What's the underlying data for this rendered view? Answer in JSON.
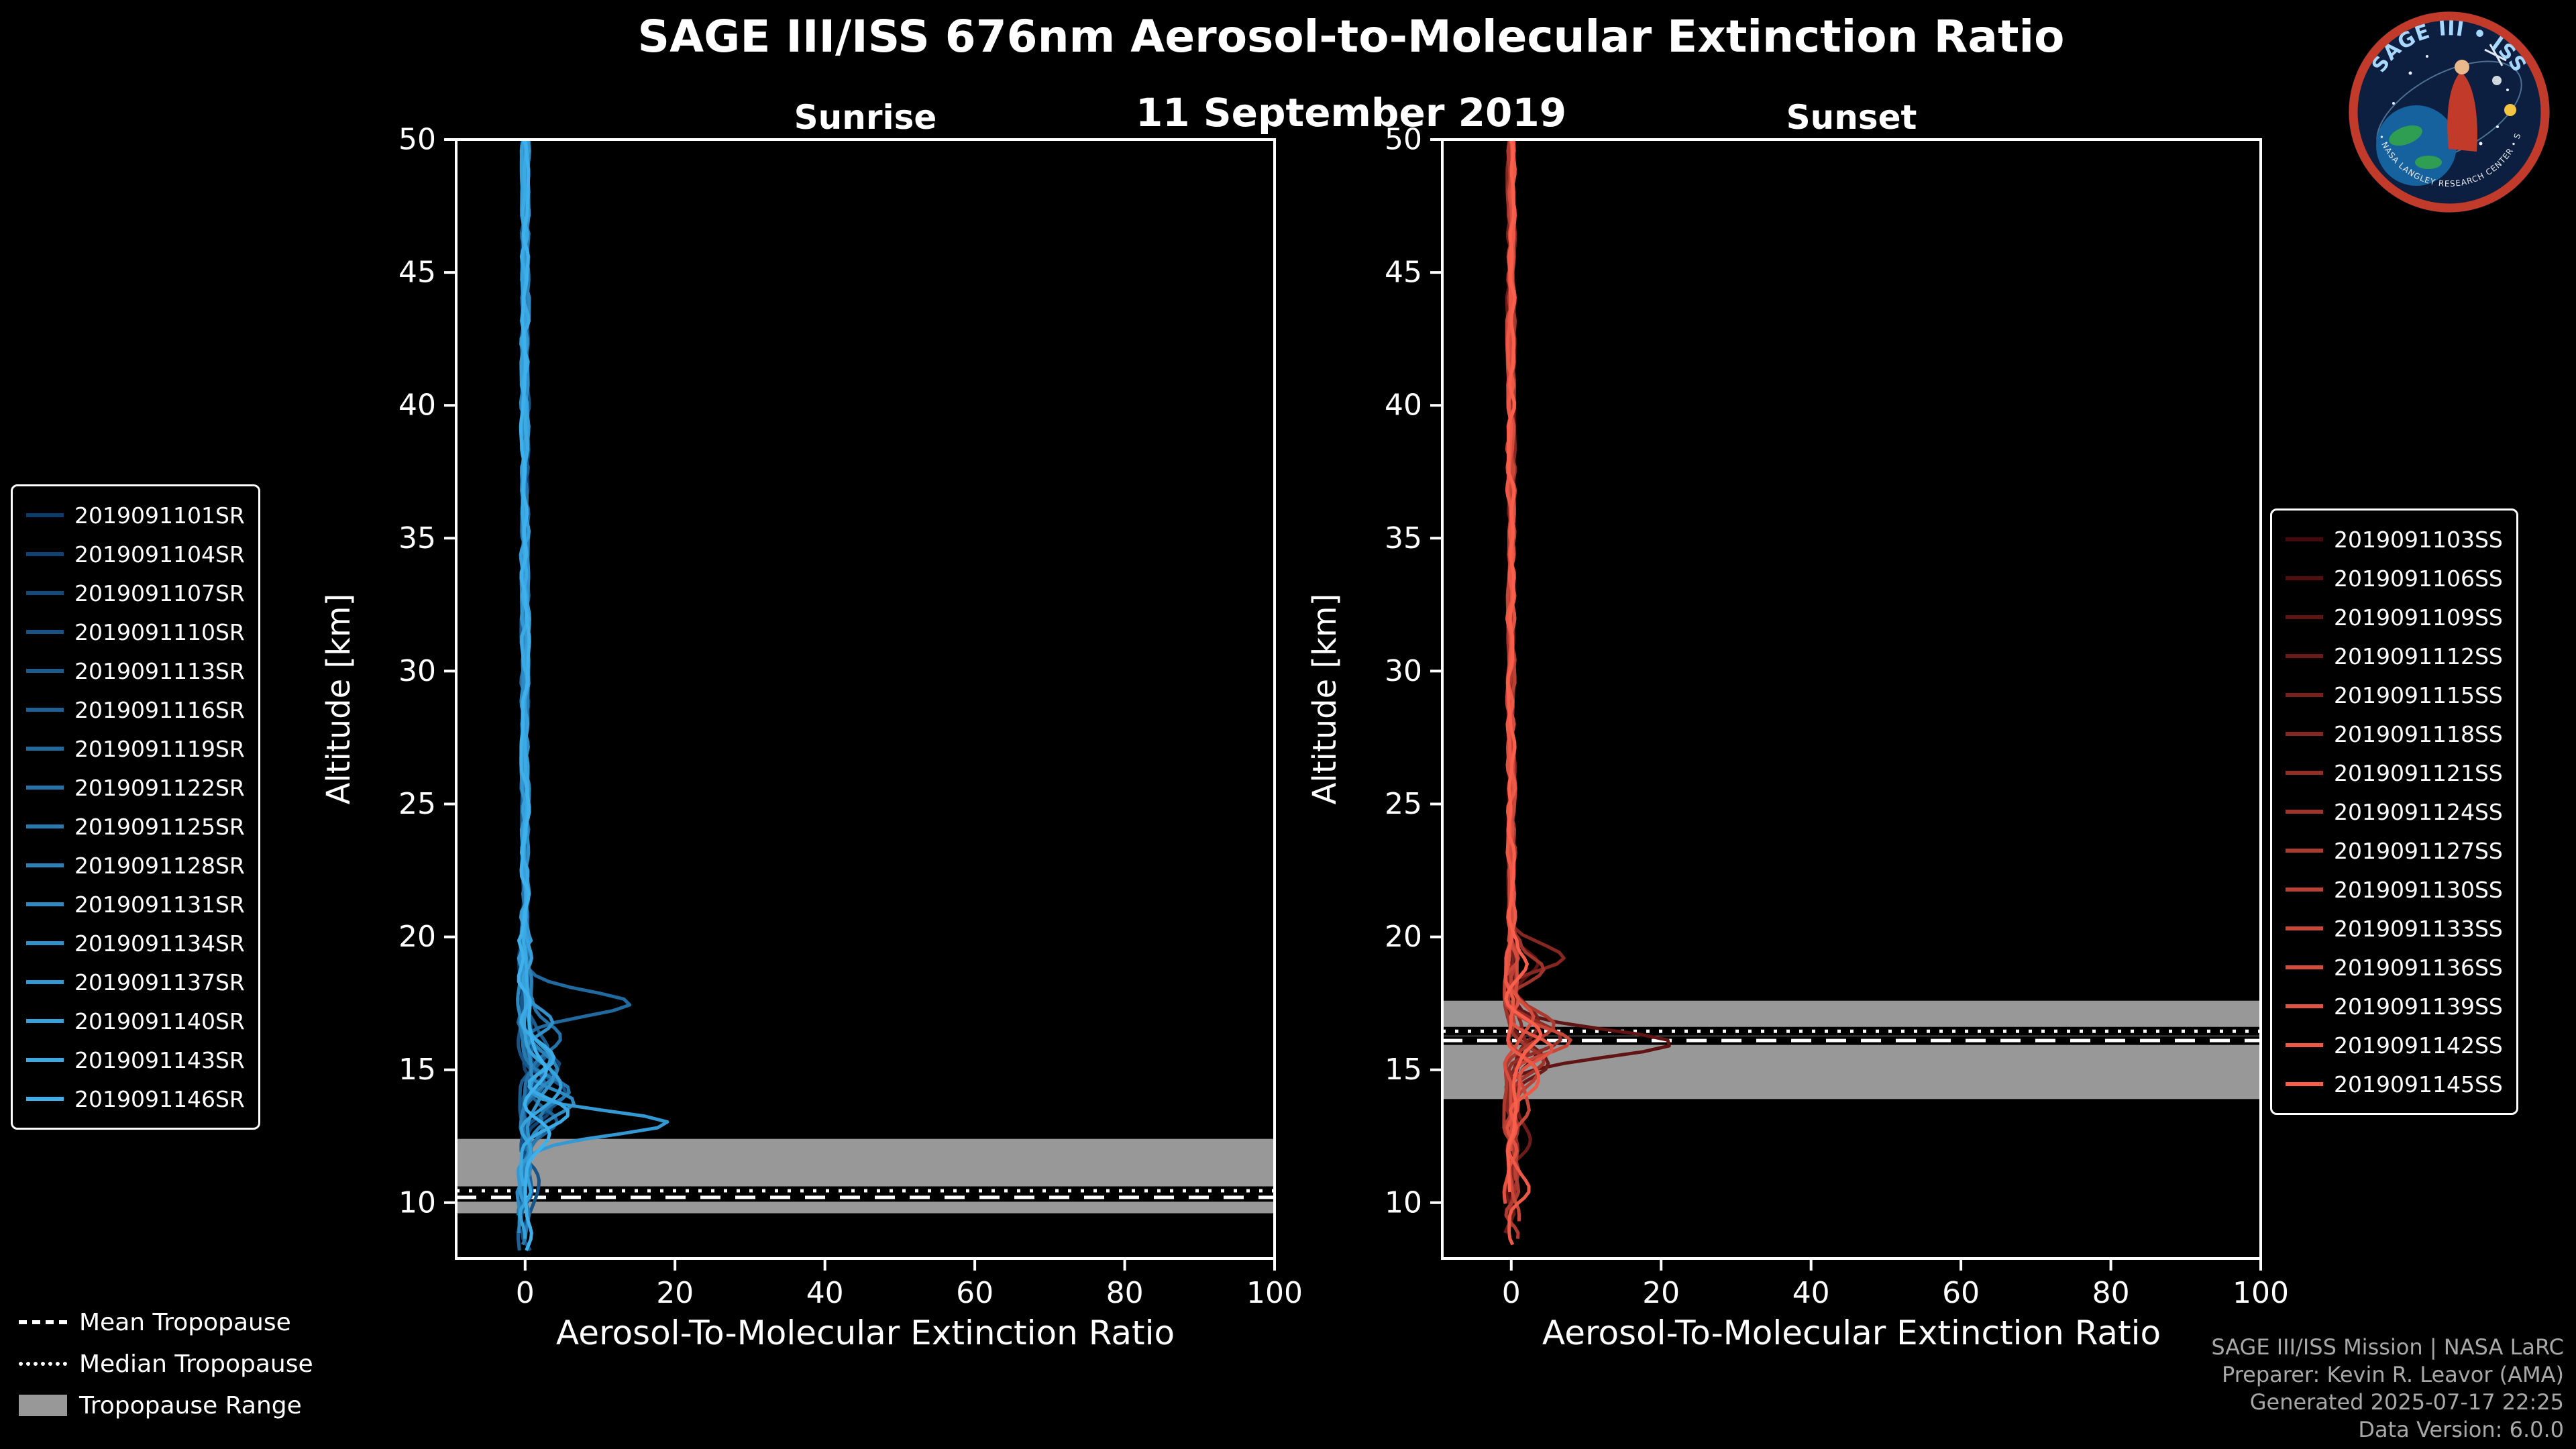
{
  "title": "SAGE III/ISS 676nm Aerosol-to-Molecular Extinction Ratio",
  "subtitle": "11 September 2019",
  "logo": {
    "top_text": "SAGE III • ISS",
    "bottom_text": "BAL • NASA LANGLEY RESEARCH CENTER • SAGE"
  },
  "tropopause_legend": [
    {
      "style": "dashed",
      "label": "Mean Tropopause"
    },
    {
      "style": "dotted",
      "label": "Median Tropopause"
    },
    {
      "style": "box",
      "label": "Tropopause Range"
    }
  ],
  "footer": {
    "lines": [
      "SAGE III/ISS Mission | NASA LaRC",
      "Preparer: Kevin R. Leavor (AMA)",
      "Generated 2025-07-17 22:25",
      "Data Version: 6.0.0"
    ]
  },
  "chart_data": [
    {
      "type": "line",
      "name": "sunrise",
      "title": "Sunrise",
      "xlabel": "Aerosol-To-Molecular Extinction Ratio",
      "ylabel": "Altitude [km]",
      "xlim": [
        -9.2,
        100
      ],
      "ylim": [
        7.9,
        50
      ],
      "xticks": [
        0,
        20,
        40,
        60,
        80,
        100
      ],
      "yticks": [
        50,
        45,
        40,
        35,
        30,
        25,
        20,
        15,
        10
      ],
      "grid": false,
      "tropopause": {
        "mean": 10.2,
        "median": 10.45,
        "range": [
          9.6,
          12.4
        ],
        "band_color": "#989898"
      },
      "series": [
        {
          "label": "2019091101SR",
          "color": "#0d3b6b",
          "seed": 1,
          "bottom": 10.8,
          "j": 0.5,
          "bumps": [
            [
              14.8,
              2.5,
              0.6
            ]
          ]
        },
        {
          "label": "2019091104SR",
          "color": "#104373",
          "seed": 2,
          "bottom": 9.2,
          "j": 0.55,
          "bumps": [
            [
              13.5,
              3,
              0.5
            ]
          ]
        },
        {
          "label": "2019091107SR",
          "color": "#134b7c",
          "seed": 3,
          "bottom": 11.5,
          "j": 0.5,
          "bumps": [
            [
              15.2,
              4,
              0.5
            ]
          ]
        },
        {
          "label": "2019091110SR",
          "color": "#175385",
          "seed": 4,
          "bottom": 8.2,
          "j": 0.6,
          "bumps": [
            [
              14.0,
              5,
              0.6
            ],
            [
              10.5,
              2,
              0.5
            ]
          ]
        },
        {
          "label": "2019091113SR",
          "color": "#1a5b8e",
          "seed": 5,
          "bottom": 10.0,
          "j": 0.5,
          "bumps": [
            [
              15.8,
              3,
              0.5
            ]
          ]
        },
        {
          "label": "2019091116SR",
          "color": "#1d6296",
          "seed": 6,
          "bottom": 8.0,
          "j": 0.55,
          "bumps": [
            [
              13.2,
              4,
              0.5
            ]
          ]
        },
        {
          "label": "2019091119SR",
          "color": "#216a9f",
          "seed": 7,
          "bottom": 11.8,
          "j": 0.5,
          "bumps": [
            [
              17.5,
              14.5,
              0.45
            ],
            [
              14.5,
              3,
              0.5
            ]
          ]
        },
        {
          "label": "2019091122SR",
          "color": "#2472a8",
          "seed": 8,
          "bottom": 9.5,
          "j": 0.6,
          "bumps": [
            [
              16.2,
              4,
              0.5
            ]
          ]
        },
        {
          "label": "2019091125SR",
          "color": "#277ab0",
          "seed": 9,
          "bottom": 8.4,
          "j": 0.55,
          "bumps": [
            [
              14.2,
              6,
              0.5
            ],
            [
              12.8,
              3,
              0.4
            ]
          ]
        },
        {
          "label": "2019091128SR",
          "color": "#2a82b9",
          "seed": 10,
          "bottom": 10.4,
          "j": 0.5,
          "bumps": [
            [
              15.0,
              5,
              0.6
            ]
          ]
        },
        {
          "label": "2019091131SR",
          "color": "#2e8ac2",
          "seed": 11,
          "bottom": 8.8,
          "j": 0.6,
          "bumps": [
            [
              13.8,
              7,
              0.5
            ]
          ]
        },
        {
          "label": "2019091134SR",
          "color": "#3191ca",
          "seed": 12,
          "bottom": 11.2,
          "j": 0.5,
          "bumps": [
            [
              16.8,
              3,
              0.5
            ],
            [
              14.6,
              4,
              0.5
            ]
          ]
        },
        {
          "label": "2019091137SR",
          "color": "#3499d3",
          "seed": 13,
          "bottom": 9.8,
          "j": 0.55,
          "bumps": [
            [
              13.0,
              19.5,
              0.45
            ],
            [
              15.5,
              3,
              0.5
            ]
          ]
        },
        {
          "label": "2019091140SR",
          "color": "#37a1dc",
          "seed": 14,
          "bottom": 8.6,
          "j": 0.6,
          "bumps": [
            [
              14.4,
              5,
              0.6
            ]
          ]
        },
        {
          "label": "2019091143SR",
          "color": "#3ba9e4",
          "seed": 15,
          "bottom": 10.6,
          "j": 0.5,
          "bumps": [
            [
              15.4,
              4,
              0.5
            ],
            [
              13.4,
              6,
              0.5
            ]
          ]
        },
        {
          "label": "2019091146SR",
          "color": "#3eb1ed",
          "seed": 16,
          "bottom": 8.2,
          "j": 0.6,
          "bumps": [
            [
              12.6,
              3,
              0.5
            ],
            [
              14.9,
              2.5,
              0.5
            ]
          ]
        }
      ]
    },
    {
      "type": "line",
      "name": "sunset",
      "title": "Sunset",
      "xlabel": "Aerosol-To-Molecular Extinction Ratio",
      "ylabel": "Altitude [km]",
      "xlim": [
        -9.2,
        100
      ],
      "ylim": [
        7.9,
        50
      ],
      "xticks": [
        0,
        20,
        40,
        60,
        80,
        100
      ],
      "yticks": [
        50,
        45,
        40,
        35,
        30,
        25,
        20,
        15,
        10
      ],
      "grid": false,
      "tropopause": {
        "mean": 16.1,
        "median": 16.45,
        "range": [
          13.9,
          17.6
        ],
        "band_color": "#989898"
      },
      "series": [
        {
          "label": "2019091103SS",
          "color": "#46080a",
          "seed": 21,
          "bottom": 11.0,
          "j": 0.5,
          "bumps": [
            [
              16.4,
              3,
              0.5
            ]
          ]
        },
        {
          "label": "2019091106SS",
          "color": "#530e0f",
          "seed": 22,
          "bottom": 9.4,
          "j": 0.55,
          "bumps": [
            [
              15.6,
              4,
              0.5
            ]
          ]
        },
        {
          "label": "2019091109SS",
          "color": "#601413",
          "seed": 23,
          "bottom": 12.0,
          "j": 0.5,
          "bumps": [
            [
              16.0,
              21,
              0.5
            ],
            [
              19.0,
              3,
              0.4
            ]
          ]
        },
        {
          "label": "2019091112SS",
          "color": "#6d1b18",
          "seed": 24,
          "bottom": 8.8,
          "j": 0.6,
          "bumps": [
            [
              15.2,
              5,
              0.5
            ],
            [
              12.5,
              2,
              0.5
            ]
          ]
        },
        {
          "label": "2019091115SS",
          "color": "#79211d",
          "seed": 25,
          "bottom": 10.2,
          "j": 0.5,
          "bumps": [
            [
              16.8,
              4,
              0.5
            ]
          ]
        },
        {
          "label": "2019091118SS",
          "color": "#862721",
          "seed": 26,
          "bottom": 9.0,
          "j": 0.55,
          "bumps": [
            [
              19.2,
              7.5,
              0.45
            ],
            [
              15.8,
              3,
              0.5
            ]
          ]
        },
        {
          "label": "2019091121SS",
          "color": "#932d26",
          "seed": 27,
          "bottom": 11.4,
          "j": 0.5,
          "bumps": [
            [
              16.2,
              6,
              0.5
            ]
          ]
        },
        {
          "label": "2019091124SS",
          "color": "#a0342b",
          "seed": 28,
          "bottom": 9.6,
          "j": 0.6,
          "bumps": [
            [
              18.8,
              5,
              0.5
            ],
            [
              15.4,
              4,
              0.5
            ]
          ]
        },
        {
          "label": "2019091127SS",
          "color": "#ad3a2f",
          "seed": 29,
          "bottom": 8.6,
          "j": 0.55,
          "bumps": [
            [
              16.6,
              5,
              0.6
            ]
          ]
        },
        {
          "label": "2019091130SS",
          "color": "#ba4034",
          "seed": 30,
          "bottom": 10.8,
          "j": 0.5,
          "bumps": [
            [
              15.0,
              4,
              0.5
            ]
          ]
        },
        {
          "label": "2019091133SS",
          "color": "#c74638",
          "seed": 31,
          "bottom": 9.2,
          "j": 0.6,
          "bumps": [
            [
              16.1,
              7,
              0.5
            ],
            [
              13.5,
              2.5,
              0.5
            ]
          ]
        },
        {
          "label": "2019091136SS",
          "color": "#d34c3d",
          "seed": 32,
          "bottom": 11.8,
          "j": 0.5,
          "bumps": [
            [
              17.0,
              3,
              0.5
            ]
          ]
        },
        {
          "label": "2019091139SS",
          "color": "#e05342",
          "seed": 33,
          "bottom": 9.8,
          "j": 0.55,
          "bumps": [
            [
              15.7,
              5,
              0.5
            ]
          ]
        },
        {
          "label": "2019091142SS",
          "color": "#ed5946",
          "seed": 34,
          "bottom": 8.4,
          "j": 0.6,
          "bumps": [
            [
              14.6,
              3,
              0.6
            ],
            [
              10.5,
              2,
              0.4
            ]
          ]
        },
        {
          "label": "2019091145SS",
          "color": "#fa5f4b",
          "seed": 35,
          "bottom": 10.4,
          "j": 0.5,
          "bumps": [
            [
              16.3,
              4,
              0.5
            ],
            [
              19.0,
              2.5,
              0.4
            ]
          ]
        }
      ]
    }
  ]
}
